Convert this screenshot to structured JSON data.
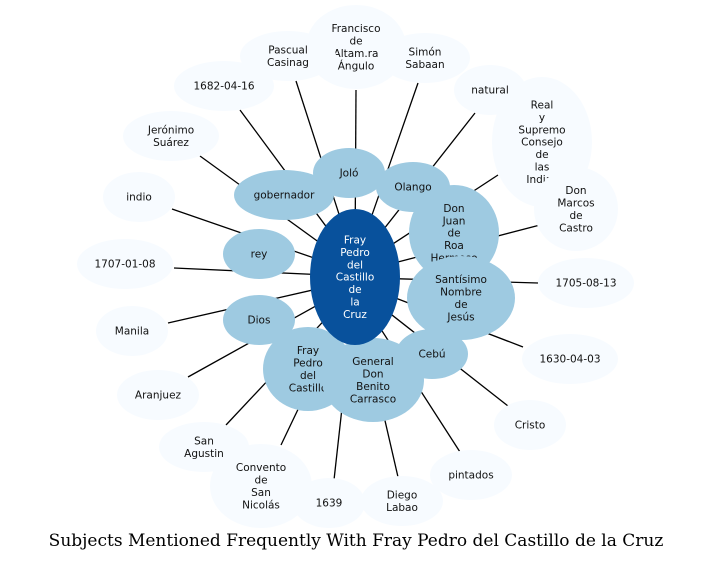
{
  "title": "Subjects Mentioned Frequently With Fray Pedro del Castillo de la Cruz",
  "colors": {
    "center": "#08519c",
    "inner": "#9ecae1",
    "outer": "#f7fbff",
    "edge": "#000000",
    "center_text": "#ffffff",
    "text": "#111111"
  },
  "center": {
    "label": "Fray\nPedro\ndel\nCastillo\nde\nla\nCruz"
  },
  "inner_nodes": [
    {
      "id": "jolo",
      "label": "Joló"
    },
    {
      "id": "gobernador",
      "label": "gobernador"
    },
    {
      "id": "olango",
      "label": "Olango"
    },
    {
      "id": "don-juan",
      "label": "Don\nJuan\nde\nRoa\nHermoso"
    },
    {
      "id": "rey",
      "label": "rey"
    },
    {
      "id": "santisimo",
      "label": "Santísimo\nNombre\nde\nJesús"
    },
    {
      "id": "dios",
      "label": "Dios"
    },
    {
      "id": "cebu",
      "label": "Cebú"
    },
    {
      "id": "fray-pedro-castillo",
      "label": "Fray\nPedro\ndel\nCastillo"
    },
    {
      "id": "general-carrasco",
      "label": "General\nDon\nBenito\nCarrasco"
    }
  ],
  "outer_nodes": [
    {
      "id": "francisco",
      "label": "Francisco\nde\nAltam.ra\nÁngulo"
    },
    {
      "id": "pascual",
      "label": "Pascual\nCasinag"
    },
    {
      "id": "simon",
      "label": "Simón\nSabaan"
    },
    {
      "id": "date-1682",
      "label": "1682-04-16"
    },
    {
      "id": "natural",
      "label": "natural"
    },
    {
      "id": "real-consejo",
      "label": "Real\ny\nSupremo\nConsejo\nde\nlas\nIndias"
    },
    {
      "id": "jeronimo",
      "label": "Jerónimo\nSuárez"
    },
    {
      "id": "don-marcos",
      "label": "Don\nMarcos\nde\nCastro"
    },
    {
      "id": "indio",
      "label": "indio"
    },
    {
      "id": "date-1707",
      "label": "1707-01-08"
    },
    {
      "id": "date-1705",
      "label": "1705-08-13"
    },
    {
      "id": "manila",
      "label": "Manila"
    },
    {
      "id": "date-1630",
      "label": "1630-04-03"
    },
    {
      "id": "aranjuez",
      "label": "Aranjuez"
    },
    {
      "id": "cristo",
      "label": "Cristo"
    },
    {
      "id": "san-agustin",
      "label": "San\nAgustin"
    },
    {
      "id": "pintados",
      "label": "pintados"
    },
    {
      "id": "convento",
      "label": "Convento\nde\nSan\nNicolás"
    },
    {
      "id": "year-1639",
      "label": "1639"
    },
    {
      "id": "diego-labao",
      "label": "Diego\nLabao"
    }
  ]
}
